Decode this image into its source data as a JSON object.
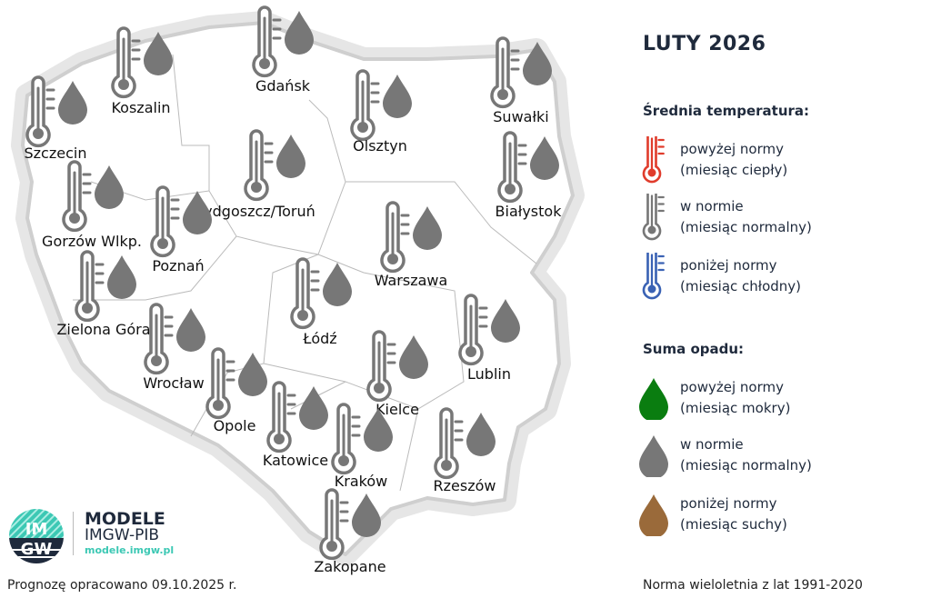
{
  "title": "LUTY 2026",
  "legend": {
    "temp_heading": "Średnia temperatura:",
    "temp_items": [
      {
        "line1": "powyżej normy",
        "line2": "(miesiąc ciepły)",
        "color": "#e03c2c",
        "icon": "thermometer-icon"
      },
      {
        "line1": "w normie",
        "line2": "(miesiąc normalny)",
        "color": "#777777",
        "icon": "thermometer-icon"
      },
      {
        "line1": "poniżej normy",
        "line2": "(miesiąc chłodny)",
        "color": "#3a62b4",
        "icon": "thermometer-icon"
      }
    ],
    "precip_heading": "Suma opadu:",
    "precip_items": [
      {
        "line1": "powyżej normy",
        "line2": "(miesiąc mokry)",
        "color": "#0a7d10",
        "icon": "drop-icon"
      },
      {
        "line1": "w normie",
        "line2": "(miesiąc normalny)",
        "color": "#777777",
        "icon": "drop-icon"
      },
      {
        "line1": "poniżej normy",
        "line2": "(miesiąc suchy)",
        "color": "#9a6a3a",
        "icon": "drop-icon"
      }
    ]
  },
  "cities": [
    {
      "name": "Szczecin",
      "temp": "w normie",
      "precip": "w normie"
    },
    {
      "name": "Koszalin",
      "temp": "w normie",
      "precip": "w normie"
    },
    {
      "name": "Gdańsk",
      "temp": "w normie",
      "precip": "w normie"
    },
    {
      "name": "Olsztyn",
      "temp": "w normie",
      "precip": "w normie"
    },
    {
      "name": "Suwałki",
      "temp": "w normie",
      "precip": "w normie"
    },
    {
      "name": "Bydgoszcz/Toruń",
      "temp": "w normie",
      "precip": "w normie"
    },
    {
      "name": "Białystok",
      "temp": "w normie",
      "precip": "w normie"
    },
    {
      "name": "Gorzów Wlkp.",
      "temp": "w normie",
      "precip": "w normie"
    },
    {
      "name": "Poznań",
      "temp": "w normie",
      "precip": "w normie"
    },
    {
      "name": "Warszawa",
      "temp": "w normie",
      "precip": "w normie"
    },
    {
      "name": "Zielona Góra",
      "temp": "w normie",
      "precip": "w normie"
    },
    {
      "name": "Łódź",
      "temp": "w normie",
      "precip": "w normie"
    },
    {
      "name": "Lublin",
      "temp": "w normie",
      "precip": "w normie"
    },
    {
      "name": "Wrocław",
      "temp": "w normie",
      "precip": "w normie"
    },
    {
      "name": "Kielce",
      "temp": "w normie",
      "precip": "w normie"
    },
    {
      "name": "Opole",
      "temp": "w normie",
      "precip": "w normie"
    },
    {
      "name": "Katowice",
      "temp": "w normie",
      "precip": "w normie"
    },
    {
      "name": "Kraków",
      "temp": "w normie",
      "precip": "w normie"
    },
    {
      "name": "Rzeszów",
      "temp": "w normie",
      "precip": "w normie"
    },
    {
      "name": "Zakopane",
      "temp": "w normie",
      "precip": "w normie"
    }
  ],
  "brand": {
    "logo_text": "IMGW",
    "name": "MODELE",
    "org": "IMGW-PIB",
    "url": "modele.imgw.pl"
  },
  "footer": {
    "forecast_date": "Prognozę opracowano 09.10.2025 r.",
    "norm": "Norma wieloletnia z lat 1991-2020"
  }
}
